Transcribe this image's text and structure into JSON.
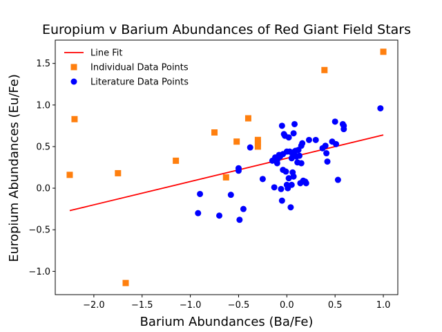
{
  "chart_data": {
    "type": "scatter",
    "title": "Europium v Barium Abundances of Red Giant Field Stars",
    "xlabel": "Barium Abundances (Ba/Fe)",
    "ylabel": "Europium Abundances (Eu/Fe)",
    "xlim": [
      -2.4,
      1.15
    ],
    "ylim": [
      -1.28,
      1.78
    ],
    "xticks": [
      -2.0,
      -1.5,
      -1.0,
      -0.5,
      0.0,
      0.5,
      1.0
    ],
    "xtick_labels": [
      "−2.0",
      "−1.5",
      "−1.0",
      "−0.5",
      "0.0",
      "0.5",
      "1.0"
    ],
    "yticks": [
      -1.0,
      -0.5,
      0.0,
      0.5,
      1.0,
      1.5
    ],
    "ytick_labels": [
      "−1.0",
      "−0.5",
      "0.0",
      "0.5",
      "1.0",
      "1.5"
    ],
    "grid": false,
    "legend_position": "top-left",
    "series": [
      {
        "name": "Line Fit",
        "kind": "line",
        "color": "#ff0000",
        "x": [
          -2.25,
          1.0
        ],
        "y": [
          -0.27,
          0.64
        ]
      },
      {
        "name": "Individual Data Points",
        "kind": "square",
        "color": "#ff7f0e",
        "x": [
          -2.25,
          -2.2,
          -1.75,
          -1.67,
          -1.15,
          -0.75,
          -0.63,
          -0.52,
          -0.4,
          -0.3,
          -0.3,
          -0.3,
          0.39,
          1.0
        ],
        "y": [
          0.16,
          0.83,
          0.18,
          -1.14,
          0.33,
          0.67,
          0.13,
          0.56,
          0.84,
          0.58,
          0.54,
          0.5,
          1.42,
          1.64
        ]
      },
      {
        "name": "Literature Data Points",
        "kind": "circle",
        "color": "#0000ff",
        "x": [
          -0.92,
          -0.9,
          -0.7,
          -0.58,
          -0.5,
          -0.5,
          -0.49,
          -0.45,
          -0.38,
          -0.25,
          -0.15,
          -0.13,
          -0.12,
          -0.1,
          -0.1,
          -0.08,
          -0.07,
          -0.06,
          -0.05,
          -0.05,
          -0.04,
          -0.04,
          -0.03,
          -0.02,
          -0.01,
          0.0,
          0.0,
          0.01,
          0.02,
          0.02,
          0.03,
          0.04,
          0.05,
          0.05,
          0.06,
          0.06,
          0.07,
          0.07,
          0.08,
          0.08,
          0.09,
          0.1,
          0.11,
          0.12,
          0.13,
          0.14,
          0.15,
          0.15,
          0.16,
          0.17,
          0.19,
          0.2,
          0.23,
          0.3,
          0.37,
          0.4,
          0.41,
          0.42,
          0.47,
          0.5,
          0.51,
          0.53,
          0.58,
          0.59,
          0.59,
          0.97
        ],
        "y": [
          -0.3,
          -0.07,
          -0.33,
          -0.08,
          0.21,
          0.24,
          -0.38,
          -0.25,
          0.49,
          0.11,
          0.33,
          0.01,
          0.37,
          0.34,
          0.3,
          0.4,
          0.38,
          -0.01,
          0.75,
          -0.15,
          0.41,
          0.22,
          0.65,
          0.63,
          0.2,
          0.44,
          0.04,
          0.0,
          0.61,
          0.12,
          0.44,
          -0.23,
          0.36,
          0.04,
          0.41,
          0.19,
          0.66,
          0.14,
          0.77,
          0.44,
          0.45,
          0.38,
          0.31,
          0.46,
          0.39,
          0.06,
          0.3,
          0.51,
          0.54,
          0.09,
          0.08,
          0.06,
          0.58,
          0.58,
          0.48,
          0.51,
          0.42,
          0.32,
          0.56,
          0.8,
          0.53,
          0.1,
          0.77,
          0.75,
          0.71,
          0.96
        ]
      }
    ]
  }
}
